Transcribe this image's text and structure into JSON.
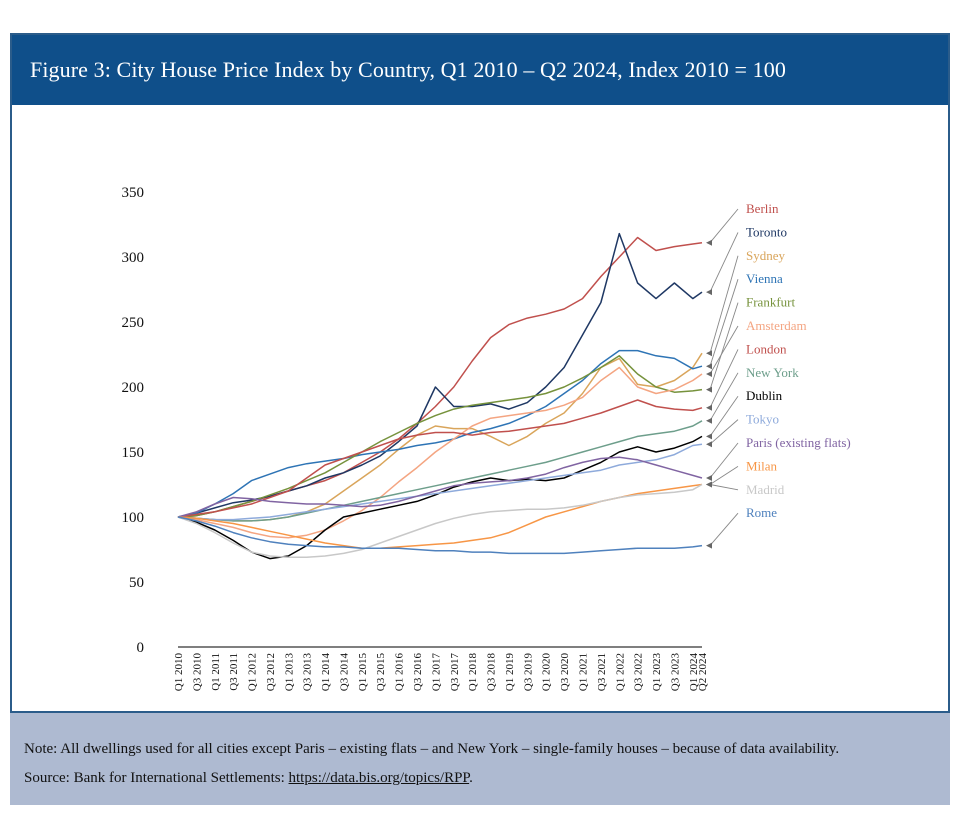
{
  "figure": {
    "title": "Figure 3: City House Price Index by Country, Q1 2010 – Q2 2024, Index 2010 = 100",
    "note": "Note: All dwellings used for all cities except Paris – existing flats – and New York – single-family houses – because of data availability.",
    "source_prefix": "Source: Bank for International Settlements: ",
    "source_link": "https://data.bis.org/topics/RPP",
    "source_suffix": "."
  },
  "chart_data": {
    "type": "line",
    "title": "Figure 3: City House Price Index by Country, Q1 2010 – Q2 2024, Index 2010 = 100",
    "xlabel": "",
    "ylabel": "",
    "ylim": [
      0,
      350
    ],
    "yticks": [
      0,
      50,
      100,
      150,
      200,
      250,
      300,
      350
    ],
    "xticks": [
      "Q1 2010",
      "Q3 2010",
      "Q1 2011",
      "Q3 2011",
      "Q1 2012",
      "Q3 2012",
      "Q1 2013",
      "Q3 2013",
      "Q1 2014",
      "Q3 2014",
      "Q1 2015",
      "Q3 2015",
      "Q1 2016",
      "Q3 2016",
      "Q1 2017",
      "Q3 2017",
      "Q1 2018",
      "Q3 2018",
      "Q1 2019",
      "Q3 2019",
      "Q1 2020",
      "Q3 2020",
      "Q1 2021",
      "Q3 2021",
      "Q1 2022",
      "Q3 2022",
      "Q1 2023",
      "Q3 2023",
      "Q1 2024",
      "Q2 2024"
    ],
    "x_quarter_index": [
      0,
      2,
      4,
      6,
      8,
      10,
      12,
      14,
      16,
      18,
      20,
      22,
      24,
      26,
      28,
      30,
      32,
      34,
      36,
      38,
      40,
      42,
      44,
      46,
      48,
      50,
      52,
      54,
      56,
      57
    ],
    "grid": false,
    "legend": "right",
    "series": [
      {
        "name": "Berlin",
        "color": "#c0504d",
        "values": [
          100,
          101,
          104,
          108,
          112,
          116,
          120,
          124,
          128,
          134,
          142,
          150,
          160,
          172,
          185,
          200,
          220,
          238,
          248,
          253,
          256,
          260,
          268,
          285,
          300,
          315,
          305,
          308,
          310,
          311
        ]
      },
      {
        "name": "Toronto",
        "color": "#1f3864",
        "values": [
          100,
          103,
          107,
          111,
          113,
          116,
          120,
          124,
          130,
          134,
          140,
          147,
          158,
          170,
          200,
          185,
          185,
          187,
          183,
          188,
          200,
          215,
          240,
          265,
          318,
          280,
          268,
          280,
          268,
          273
        ]
      },
      {
        "name": "Sydney",
        "color": "#d9a55b",
        "values": [
          100,
          99,
          98,
          97,
          97,
          98,
          100,
          104,
          110,
          120,
          130,
          140,
          152,
          163,
          170,
          168,
          168,
          162,
          155,
          162,
          172,
          180,
          195,
          215,
          222,
          202,
          200,
          205,
          215,
          226
        ]
      },
      {
        "name": "Vienna",
        "color": "#2e74b5",
        "values": [
          100,
          103,
          110,
          118,
          128,
          133,
          138,
          141,
          143,
          145,
          148,
          150,
          152,
          155,
          157,
          160,
          165,
          168,
          172,
          178,
          185,
          195,
          205,
          218,
          228,
          228,
          224,
          222,
          214,
          216
        ]
      },
      {
        "name": "Frankfurt",
        "color": "#76923c",
        "values": [
          100,
          101,
          104,
          108,
          112,
          117,
          122,
          128,
          134,
          142,
          150,
          158,
          165,
          172,
          178,
          183,
          186,
          188,
          190,
          192,
          195,
          200,
          207,
          215,
          224,
          210,
          200,
          196,
          197,
          198
        ]
      },
      {
        "name": "Amsterdam",
        "color": "#f4a582",
        "values": [
          100,
          98,
          95,
          92,
          88,
          85,
          84,
          86,
          90,
          97,
          105,
          115,
          127,
          138,
          150,
          160,
          170,
          176,
          178,
          180,
          182,
          186,
          192,
          205,
          215,
          200,
          195,
          198,
          205,
          210
        ]
      },
      {
        "name": "London",
        "color": "#c0504d",
        "values": [
          100,
          102,
          104,
          107,
          110,
          115,
          120,
          130,
          140,
          145,
          150,
          155,
          160,
          163,
          165,
          165,
          163,
          165,
          166,
          168,
          170,
          172,
          176,
          180,
          185,
          190,
          185,
          183,
          182,
          184
        ]
      },
      {
        "name": "New York",
        "color": "#6d9e8b",
        "values": [
          100,
          99,
          98,
          97,
          97,
          98,
          100,
          103,
          106,
          109,
          112,
          115,
          118,
          121,
          124,
          127,
          130,
          133,
          136,
          139,
          142,
          146,
          150,
          154,
          158,
          162,
          164,
          166,
          170,
          174
        ]
      },
      {
        "name": "Dublin",
        "color": "#000000",
        "values": [
          100,
          96,
          90,
          82,
          73,
          68,
          70,
          78,
          90,
          100,
          103,
          106,
          109,
          112,
          117,
          123,
          127,
          130,
          128,
          129,
          128,
          130,
          136,
          142,
          150,
          154,
          150,
          153,
          158,
          162
        ]
      },
      {
        "name": "Tokyo",
        "color": "#8eaadb",
        "values": [
          100,
          99,
          98,
          98,
          99,
          100,
          102,
          104,
          106,
          108,
          110,
          112,
          114,
          116,
          118,
          120,
          122,
          124,
          126,
          128,
          130,
          132,
          134,
          136,
          140,
          142,
          144,
          148,
          155,
          156
        ]
      },
      {
        "name": "Paris (existing flats)",
        "color": "#8064a2",
        "values": [
          100,
          104,
          110,
          115,
          114,
          112,
          111,
          110,
          110,
          109,
          108,
          109,
          112,
          116,
          120,
          124,
          126,
          127,
          128,
          130,
          133,
          138,
          142,
          145,
          146,
          144,
          140,
          136,
          132,
          130
        ]
      },
      {
        "name": "Milan",
        "color": "#f79646",
        "values": [
          100,
          99,
          97,
          95,
          92,
          89,
          86,
          83,
          80,
          78,
          76,
          76,
          77,
          78,
          79,
          80,
          82,
          84,
          88,
          94,
          100,
          104,
          108,
          112,
          115,
          118,
          120,
          122,
          124,
          125
        ]
      },
      {
        "name": "Madrid",
        "color": "#c8c8c8",
        "values": [
          100,
          95,
          88,
          80,
          73,
          70,
          69,
          69,
          70,
          72,
          75,
          80,
          85,
          90,
          95,
          99,
          102,
          104,
          105,
          106,
          106,
          107,
          109,
          112,
          115,
          117,
          118,
          119,
          121,
          125
        ]
      },
      {
        "name": "Rome",
        "color": "#4f81bd",
        "values": [
          100,
          97,
          93,
          88,
          84,
          81,
          79,
          78,
          77,
          77,
          76,
          76,
          76,
          75,
          74,
          74,
          73,
          73,
          72,
          72,
          72,
          72,
          73,
          74,
          75,
          76,
          76,
          76,
          77,
          78
        ]
      }
    ]
  }
}
